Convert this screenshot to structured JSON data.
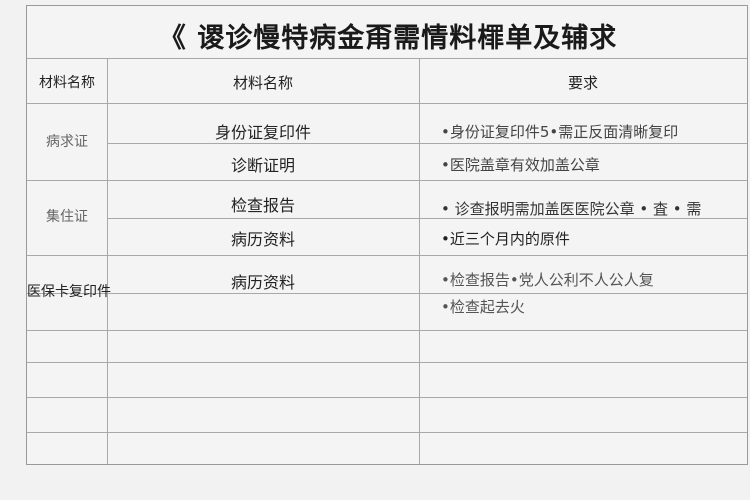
{
  "title": "《 谡诊慢特病金甭需情料檌单及辅求",
  "headers": [
    "材料名称",
    "材料名称",
    "要求"
  ],
  "groups": [
    {
      "label": "病求证",
      "items": [
        {
          "material": "身份证复印件",
          "requirement": "•身份证复印件5•需正反面清晰复印"
        },
        {
          "material": "诊断证明",
          "requirement": "•医院盖章有效加盖公章"
        }
      ]
    },
    {
      "label": "集住证",
      "items": [
        {
          "material": "检查报告",
          "requirement": "• 诊查报明需加盖医医院公章 • 査 • 需"
        },
        {
          "material": "病历资料",
          "requirement": "•近三个月内的原件"
        }
      ]
    },
    {
      "label": "医保卡复印件",
      "items": [
        {
          "material": "病历资料",
          "requirement": "•检查报告•党人公利不人公人复"
        },
        {
          "material": "",
          "requirement": "•检查起去火"
        }
      ]
    }
  ]
}
